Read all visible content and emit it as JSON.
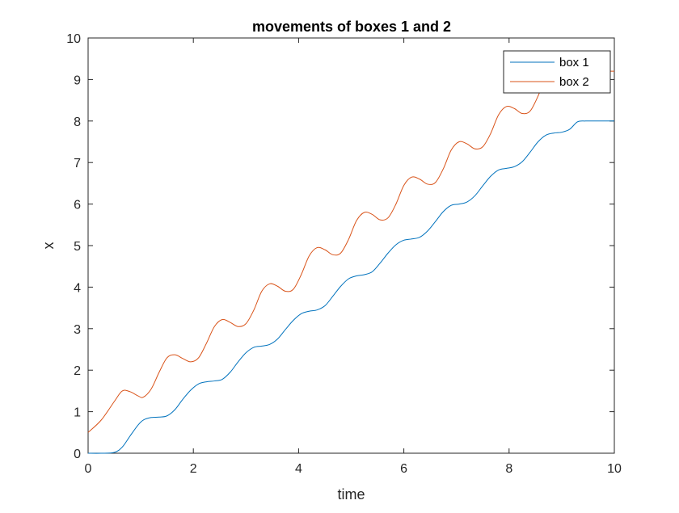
{
  "chart_data": {
    "type": "line",
    "title": "movements of boxes 1 and 2",
    "xlabel": "time",
    "ylabel": "x",
    "xlim": [
      0,
      10
    ],
    "ylim": [
      0,
      10
    ],
    "xticks": [
      0,
      2,
      4,
      6,
      8,
      10
    ],
    "yticks": [
      0,
      1,
      2,
      3,
      4,
      5,
      6,
      7,
      8,
      9,
      10
    ],
    "grid": false,
    "legend": "top-right",
    "x": [
      0,
      0.25,
      0.5,
      0.65,
      0.8,
      0.95,
      1.05,
      1.2,
      1.35,
      1.5,
      1.65,
      1.8,
      1.95,
      2.1,
      2.25,
      2.4,
      2.55,
      2.7,
      2.85,
      3.0,
      3.15,
      3.3,
      3.45,
      3.6,
      3.75,
      3.9,
      4.05,
      4.2,
      4.35,
      4.5,
      4.65,
      4.8,
      4.95,
      5.1,
      5.25,
      5.4,
      5.55,
      5.7,
      5.85,
      6.0,
      6.15,
      6.3,
      6.45,
      6.6,
      6.75,
      6.9,
      7.05,
      7.2,
      7.35,
      7.5,
      7.65,
      7.8,
      7.95,
      8.1,
      8.25,
      8.4,
      8.55,
      8.7,
      8.85,
      9.0,
      9.15,
      9.3,
      9.45,
      9.6,
      9.75,
      9.9,
      10.0
    ],
    "series": [
      {
        "name": "box 1",
        "color": "#0072BD",
        "values": [
          0,
          0,
          0.02,
          0.15,
          0.42,
          0.68,
          0.8,
          0.86,
          0.87,
          0.9,
          1.05,
          1.3,
          1.52,
          1.67,
          1.72,
          1.74,
          1.78,
          1.95,
          2.2,
          2.42,
          2.55,
          2.58,
          2.62,
          2.75,
          2.98,
          3.2,
          3.36,
          3.42,
          3.45,
          3.55,
          3.78,
          4.02,
          4.2,
          4.27,
          4.3,
          4.37,
          4.58,
          4.82,
          5.02,
          5.13,
          5.16,
          5.2,
          5.35,
          5.58,
          5.82,
          5.97,
          6.0,
          6.05,
          6.2,
          6.44,
          6.67,
          6.82,
          6.86,
          6.9,
          7.02,
          7.25,
          7.5,
          7.66,
          7.71,
          7.73,
          7.8,
          7.98,
          8.0,
          8.0,
          8.0,
          8.0,
          8.0
        ]
      },
      {
        "name": "box 2",
        "color": "#D95319",
        "values": [
          0.5,
          0.8,
          1.25,
          1.5,
          1.48,
          1.38,
          1.35,
          1.55,
          1.95,
          2.3,
          2.37,
          2.28,
          2.2,
          2.3,
          2.65,
          3.05,
          3.22,
          3.15,
          3.05,
          3.12,
          3.45,
          3.9,
          4.08,
          4.02,
          3.9,
          3.95,
          4.3,
          4.75,
          4.95,
          4.9,
          4.78,
          4.82,
          5.15,
          5.6,
          5.8,
          5.75,
          5.62,
          5.67,
          6.0,
          6.45,
          6.65,
          6.6,
          6.48,
          6.52,
          6.85,
          7.3,
          7.5,
          7.45,
          7.33,
          7.38,
          7.7,
          8.15,
          8.35,
          8.3,
          8.18,
          8.24,
          8.6,
          9.05,
          9.2,
          9.17,
          9.2,
          9.2,
          9.2,
          9.2,
          9.2,
          9.2,
          9.2
        ]
      }
    ]
  }
}
